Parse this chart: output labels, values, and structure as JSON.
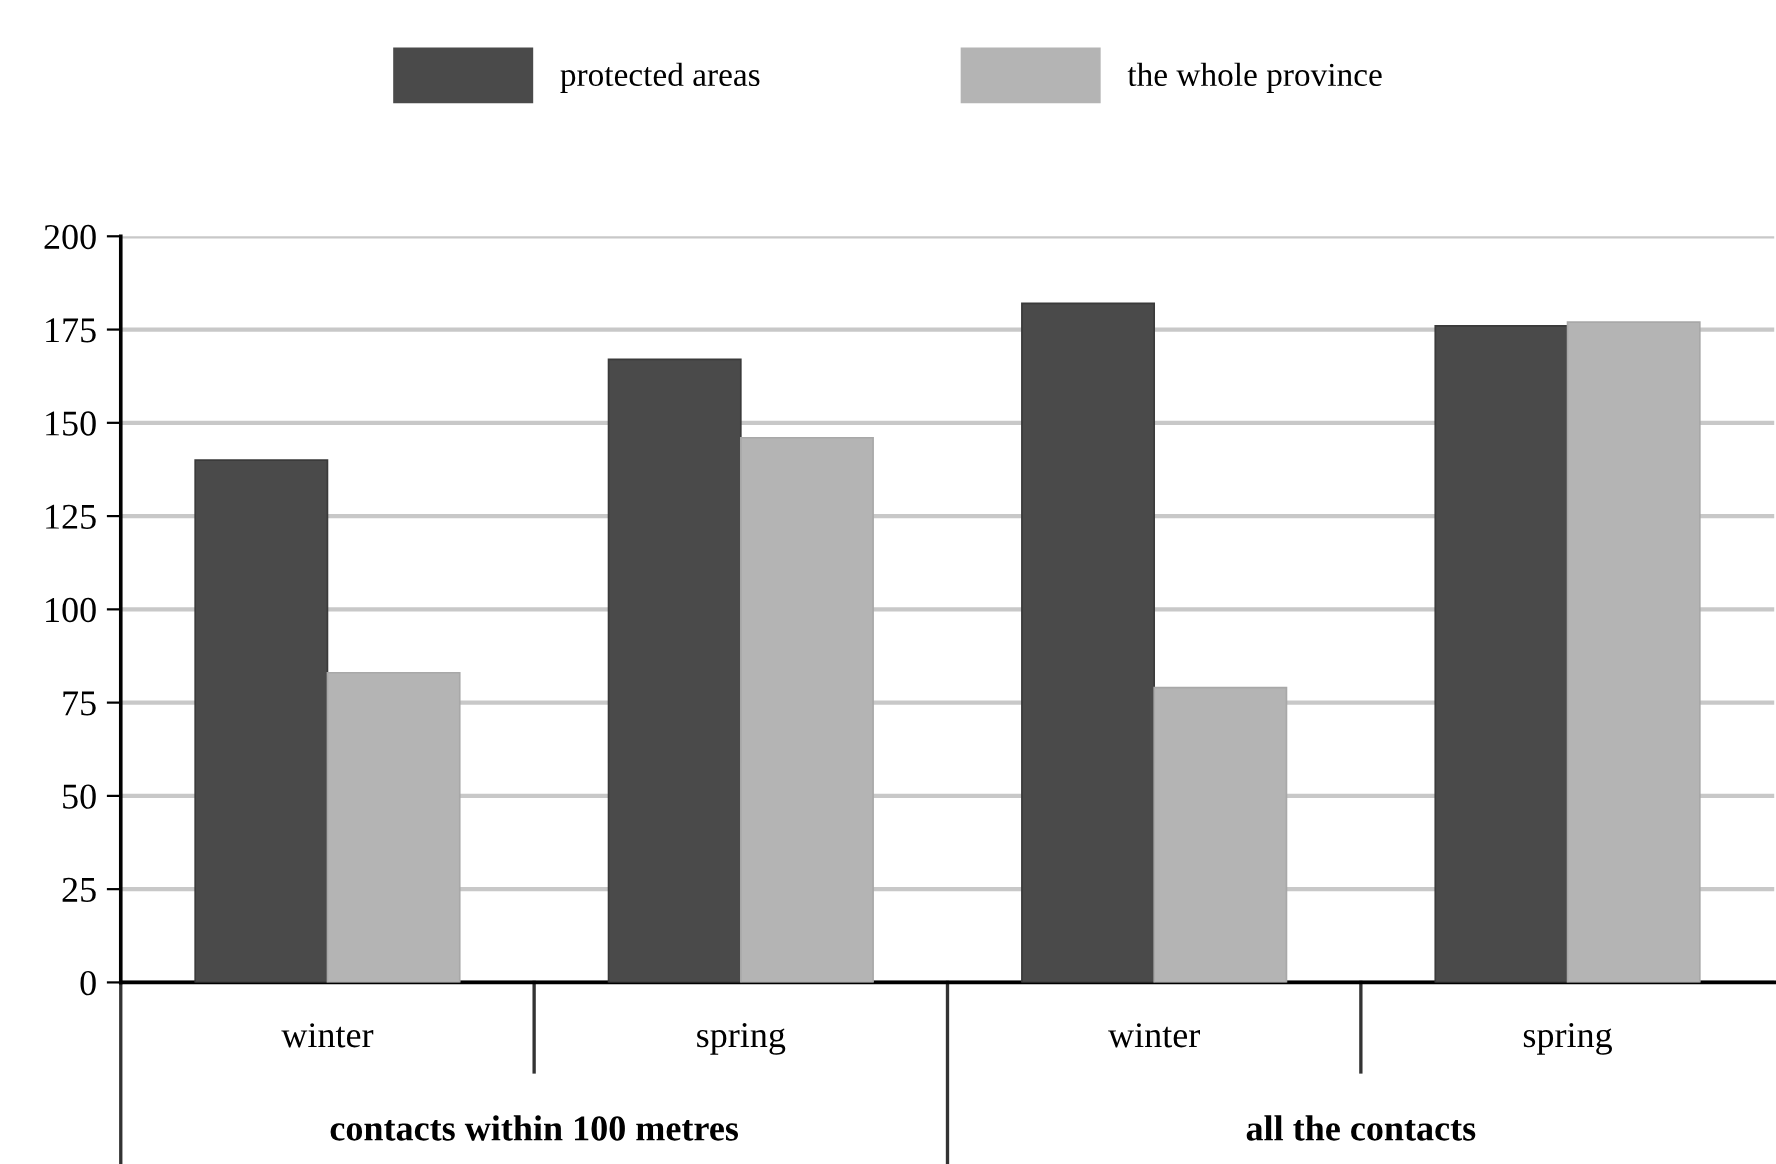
{
  "chart_data": {
    "type": "bar",
    "categories": [
      "winter",
      "spring",
      "winter",
      "spring"
    ],
    "series": [
      {
        "name": "protected areas",
        "color": "#4a4a4a",
        "values": [
          140,
          167,
          182,
          176
        ]
      },
      {
        "name": "the whole province",
        "color": "#b4b4b4",
        "values": [
          83,
          146,
          79,
          177
        ]
      }
    ],
    "ylim": [
      0,
      200
    ],
    "yticks": [
      0,
      25,
      50,
      75,
      100,
      125,
      150,
      175,
      200
    ],
    "grid": "y",
    "legend": "top",
    "annotations": [
      "contacts within 100 metres",
      "all the contacts"
    ]
  }
}
